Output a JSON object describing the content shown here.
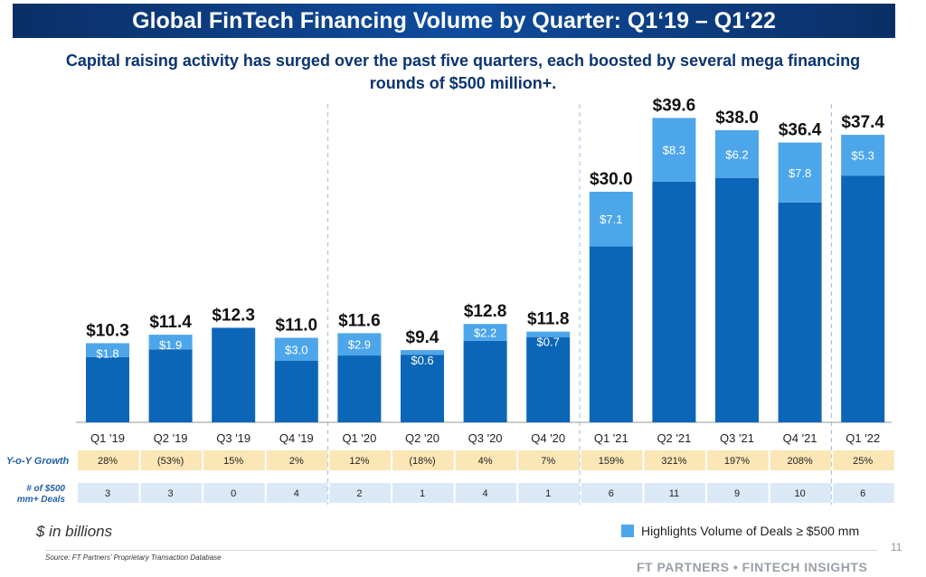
{
  "title": "Global FinTech Financing Volume by Quarter: Q1‘19 – Q1‘22",
  "subtitle": "Capital raising activity has surged over the past five quarters, each boosted by several mega financing rounds of $500 million+.",
  "units_note": "$ in billions",
  "legend_label": "Highlights Volume of Deals ≥ $500 mm",
  "source": "Source: FT Partners’ Proprietary Transaction Database",
  "page_number": "11",
  "footer": "FT PARTNERS • FINTECH INSIGHTS",
  "colors": {
    "base": "#0b66b7",
    "mega": "#4da6ea",
    "title_bar": "#0f4c9e",
    "growth_row": "#fbe6b6",
    "deals_row": "#dbe9f7",
    "row_label": "#1f5fa9"
  },
  "chart_data": {
    "type": "bar",
    "stacked": true,
    "categories": [
      "Q1 '19",
      "Q2 '19",
      "Q3 '19",
      "Q4 '19",
      "Q1 '20",
      "Q2 '20",
      "Q3 '20",
      "Q4 '20",
      "Q1 '21",
      "Q2 '21",
      "Q3 '21",
      "Q4 '21",
      "Q1 '22"
    ],
    "totals": [
      10.3,
      11.4,
      12.3,
      11.0,
      11.6,
      9.4,
      12.8,
      11.8,
      30.0,
      39.6,
      38.0,
      36.4,
      37.4
    ],
    "total_labels": [
      "$10.3",
      "$11.4",
      "$12.3",
      "$11.0",
      "$11.6",
      "$9.4",
      "$12.8",
      "$11.8",
      "$30.0",
      "$39.6",
      "$38.0",
      "$36.4",
      "$37.4"
    ],
    "mega_values": [
      1.8,
      1.9,
      0,
      3.0,
      2.9,
      0.6,
      2.2,
      0.7,
      7.1,
      8.3,
      6.2,
      7.8,
      5.3
    ],
    "mega_labels": [
      "$1.8",
      "$1.9",
      "",
      "$3.0",
      "$2.9",
      "$0.6",
      "$2.2",
      "$0.7",
      "$7.1",
      "$8.3",
      "$6.2",
      "$7.8",
      "$5.3"
    ],
    "ylim": [
      0,
      42
    ],
    "table": {
      "growth_label": "Y-o-Y Growth",
      "growth": [
        "28%",
        "(53%)",
        "15%",
        "2%",
        "12%",
        "(18%)",
        "4%",
        "7%",
        "159%",
        "321%",
        "197%",
        "208%",
        "25%"
      ],
      "deals_label_line1": "# of $500",
      "deals_label_line2": "mm+ Deals",
      "deals": [
        "3",
        "3",
        "0",
        "4",
        "2",
        "1",
        "4",
        "1",
        "6",
        "11",
        "9",
        "10",
        "6"
      ]
    }
  }
}
